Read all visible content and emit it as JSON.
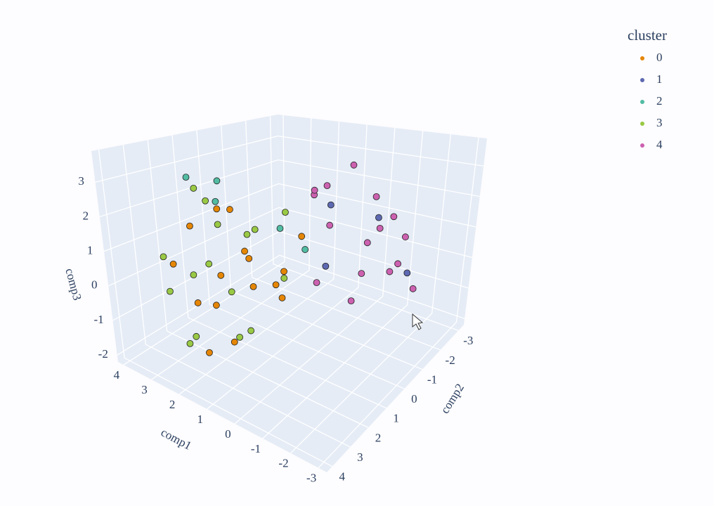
{
  "chart_data": {
    "type": "scatter3d",
    "legend_title": "cluster",
    "xaxis_title": "comp1",
    "yaxis_title": "comp2",
    "zaxis_title": "comp3",
    "xlim": [
      -3.3,
      4.2
    ],
    "ylim": [
      -3.3,
      4.3
    ],
    "zlim": [
      -2.2,
      3.9
    ],
    "xticks": [
      -3,
      -2,
      -1,
      0,
      1,
      2,
      3,
      4
    ],
    "yticks": [
      -3,
      -2,
      -1,
      0,
      1,
      2,
      3,
      4
    ],
    "zticks": [
      -2,
      -1,
      0,
      1,
      2,
      3
    ],
    "grid": true,
    "series": [
      {
        "name": "0",
        "color": "#E58606",
        "x": [
          2.5,
          2.0,
          1.5,
          1.0,
          0.5,
          3.0,
          2.2,
          1.8,
          0.8,
          0.2,
          2.7,
          1.2,
          1.6,
          2.4,
          0.0,
          1.0
        ],
        "y": [
          2.5,
          2.0,
          1.5,
          2.8,
          1.0,
          2.0,
          1.2,
          3.0,
          2.2,
          1.5,
          3.2,
          0.5,
          2.5,
          1.8,
          0.8,
          1.8
        ],
        "z": [
          -0.5,
          0.3,
          1.0,
          -1.0,
          0.5,
          1.5,
          2.0,
          -1.5,
          1.2,
          0.0,
          0.8,
          -0.3,
          2.5,
          -0.8,
          1.6,
          0.2
        ]
      },
      {
        "name": "1",
        "color": "#5D69B1",
        "x": [
          -1.0,
          0.2,
          -1.8,
          -0.4
        ],
        "y": [
          -1.5,
          -0.8,
          -2.0,
          0.2
        ],
        "z": [
          1.6,
          2.0,
          -0.2,
          0.6
        ]
      },
      {
        "name": "2",
        "color": "#52BCA3",
        "x": [
          3.0,
          2.6,
          2.2,
          1.0,
          0.5
        ],
        "y": [
          2.0,
          1.2,
          1.8,
          0.5,
          0.0
        ],
        "z": [
          3.0,
          2.8,
          2.4,
          1.5,
          0.8
        ]
      },
      {
        "name": "3",
        "color": "#99C945",
        "x": [
          3.0,
          2.5,
          2.0,
          1.5,
          3.5,
          2.8,
          1.0,
          2.2,
          0.5,
          3.2,
          1.8,
          2.6,
          1.2,
          0.8,
          2.0,
          3.0
        ],
        "y": [
          2.0,
          3.0,
          2.5,
          1.0,
          2.5,
          1.5,
          2.0,
          0.5,
          1.0,
          3.0,
          1.8,
          2.2,
          0.0,
          2.8,
          3.3,
          0.8
        ],
        "z": [
          0.0,
          -1.5,
          0.8,
          1.5,
          -0.5,
          2.2,
          -1.0,
          1.0,
          0.3,
          0.8,
          -0.2,
          2.8,
          1.8,
          -0.8,
          -1.0,
          1.2
        ]
      },
      {
        "name": "4",
        "color": "#CC61B0",
        "x": [
          -1.5,
          -1.0,
          -0.5,
          0.0,
          0.5,
          -2.0,
          -1.2,
          -0.8,
          0.2,
          -1.8,
          -0.3,
          0.8,
          -1.5,
          -2.2,
          0.0,
          -0.6
        ],
        "y": [
          -1.5,
          -1.0,
          -2.0,
          -0.5,
          -1.0,
          -1.2,
          0.0,
          -2.5,
          -1.8,
          -0.5,
          0.5,
          -0.8,
          -2.2,
          -1.8,
          0.2,
          -1.3
        ],
        "z": [
          0.0,
          1.0,
          2.0,
          1.5,
          2.5,
          0.5,
          -0.3,
          1.2,
          3.0,
          1.8,
          0.2,
          2.2,
          0.8,
          -0.5,
          2.8,
          -0.2
        ]
      }
    ]
  }
}
